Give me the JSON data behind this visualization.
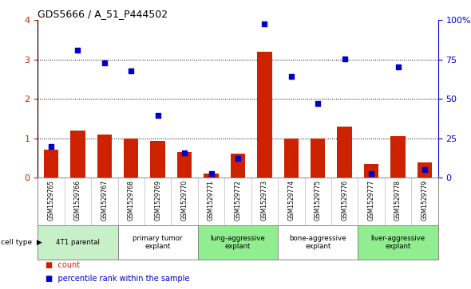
{
  "title": "GDS5666 / A_51_P444502",
  "samples": [
    "GSM1529765",
    "GSM1529766",
    "GSM1529767",
    "GSM1529768",
    "GSM1529769",
    "GSM1529770",
    "GSM1529771",
    "GSM1529772",
    "GSM1529773",
    "GSM1529774",
    "GSM1529775",
    "GSM1529776",
    "GSM1529777",
    "GSM1529778",
    "GSM1529779"
  ],
  "bar_values": [
    0.72,
    1.2,
    1.1,
    1.0,
    0.93,
    0.65,
    0.1,
    0.62,
    3.2,
    1.0,
    1.0,
    1.3,
    0.35,
    1.05,
    0.38
  ],
  "dot_percentile": [
    20,
    81,
    73,
    68,
    39.5,
    16,
    2.5,
    12,
    97.5,
    64.5,
    47,
    75.5,
    2.5,
    70.5,
    5
  ],
  "cell_groups": [
    {
      "label": "4T1 parental",
      "start": 0,
      "end": 2,
      "color": "#c8f0c8"
    },
    {
      "label": "primary tumor\nexplant",
      "start": 3,
      "end": 5,
      "color": "#ffffff"
    },
    {
      "label": "lung-aggressive\nexplant",
      "start": 6,
      "end": 8,
      "color": "#90ee90"
    },
    {
      "label": "bone-aggressive\nexplant",
      "start": 9,
      "end": 11,
      "color": "#ffffff"
    },
    {
      "label": "liver-aggressive\nexplant",
      "start": 12,
      "end": 14,
      "color": "#90ee90"
    }
  ],
  "ylim_left": [
    0,
    4
  ],
  "ylim_right": [
    0,
    100
  ],
  "yticks_left": [
    0,
    1,
    2,
    3,
    4
  ],
  "yticks_right": [
    0,
    25,
    50,
    75,
    100
  ],
  "bar_color": "#cc2200",
  "dot_color": "#0000cc",
  "cell_type_label": "cell type",
  "legend_items": [
    {
      "color": "#cc2200",
      "label": "count"
    },
    {
      "color": "#0000cc",
      "label": "percentile rank within the sample"
    }
  ]
}
